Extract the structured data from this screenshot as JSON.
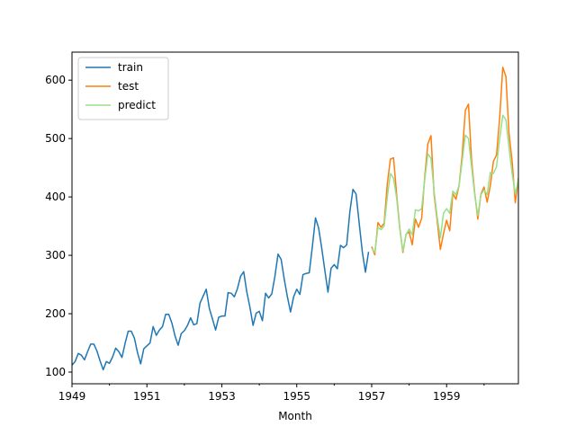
{
  "chart_data": {
    "type": "line",
    "xlabel": "Month",
    "ylabel": "",
    "xlim": [
      "1949-01",
      "1960-12"
    ],
    "ylim": [
      80,
      648
    ],
    "x_ticks": [
      "1949",
      "1951",
      "1953",
      "1955",
      "1957",
      "1959"
    ],
    "y_ticks": [
      100,
      200,
      300,
      400,
      500,
      600
    ],
    "grid": false,
    "legend": "upper-left",
    "series": [
      {
        "name": "train",
        "color": "#1f77b4",
        "x": [
          "1949-01",
          "1949-02",
          "1949-03",
          "1949-04",
          "1949-05",
          "1949-06",
          "1949-07",
          "1949-08",
          "1949-09",
          "1949-10",
          "1949-11",
          "1949-12",
          "1950-01",
          "1950-02",
          "1950-03",
          "1950-04",
          "1950-05",
          "1950-06",
          "1950-07",
          "1950-08",
          "1950-09",
          "1950-10",
          "1950-11",
          "1950-12",
          "1951-01",
          "1951-02",
          "1951-03",
          "1951-04",
          "1951-05",
          "1951-06",
          "1951-07",
          "1951-08",
          "1951-09",
          "1951-10",
          "1951-11",
          "1951-12",
          "1952-01",
          "1952-02",
          "1952-03",
          "1952-04",
          "1952-05",
          "1952-06",
          "1952-07",
          "1952-08",
          "1952-09",
          "1952-10",
          "1952-11",
          "1952-12",
          "1953-01",
          "1953-02",
          "1953-03",
          "1953-04",
          "1953-05",
          "1953-06",
          "1953-07",
          "1953-08",
          "1953-09",
          "1953-10",
          "1953-11",
          "1953-12",
          "1954-01",
          "1954-02",
          "1954-03",
          "1954-04",
          "1954-05",
          "1954-06",
          "1954-07",
          "1954-08",
          "1954-09",
          "1954-10",
          "1954-11",
          "1954-12",
          "1955-01",
          "1955-02",
          "1955-03",
          "1955-04",
          "1955-05",
          "1955-06",
          "1955-07",
          "1955-08",
          "1955-09",
          "1955-10",
          "1955-11",
          "1955-12",
          "1956-01",
          "1956-02",
          "1956-03",
          "1956-04",
          "1956-05",
          "1956-06",
          "1956-07",
          "1956-08",
          "1956-09",
          "1956-10",
          "1956-11",
          "1956-12"
        ],
        "values": [
          112,
          118,
          132,
          129,
          121,
          135,
          148,
          148,
          136,
          119,
          104,
          118,
          115,
          126,
          141,
          135,
          125,
          149,
          170,
          170,
          158,
          133,
          114,
          140,
          145,
          150,
          178,
          163,
          172,
          178,
          199,
          199,
          184,
          162,
          146,
          166,
          171,
          180,
          193,
          181,
          183,
          218,
          230,
          242,
          209,
          191,
          172,
          194,
          196,
          196,
          236,
          235,
          229,
          243,
          264,
          272,
          237,
          211,
          180,
          201,
          204,
          188,
          235,
          227,
          234,
          264,
          302,
          293,
          259,
          229,
          203,
          229,
          242,
          233,
          267,
          269,
          270,
          315,
          364,
          347,
          312,
          274,
          237,
          278,
          284,
          277,
          317,
          313,
          318,
          374,
          413,
          405,
          355,
          306,
          271,
          306
        ]
      },
      {
        "name": "test",
        "color": "#ff7f0e",
        "x": [
          "1957-01",
          "1957-02",
          "1957-03",
          "1957-04",
          "1957-05",
          "1957-06",
          "1957-07",
          "1957-08",
          "1957-09",
          "1957-10",
          "1957-11",
          "1957-12",
          "1958-01",
          "1958-02",
          "1958-03",
          "1958-04",
          "1958-05",
          "1958-06",
          "1958-07",
          "1958-08",
          "1958-09",
          "1958-10",
          "1958-11",
          "1958-12",
          "1959-01",
          "1959-02",
          "1959-03",
          "1959-04",
          "1959-05",
          "1959-06",
          "1959-07",
          "1959-08",
          "1959-09",
          "1959-10",
          "1959-11",
          "1959-12",
          "1960-01",
          "1960-02",
          "1960-03",
          "1960-04",
          "1960-05",
          "1960-06",
          "1960-07",
          "1960-08",
          "1960-09",
          "1960-10",
          "1960-11",
          "1960-12"
        ],
        "values": [
          315,
          301,
          356,
          348,
          355,
          422,
          465,
          467,
          404,
          347,
          305,
          336,
          340,
          318,
          362,
          348,
          363,
          435,
          491,
          505,
          404,
          359,
          310,
          337,
          360,
          342,
          406,
          396,
          420,
          472,
          548,
          559,
          463,
          407,
          362,
          405,
          417,
          391,
          419,
          461,
          472,
          535,
          622,
          606,
          508,
          461,
          390,
          432
        ]
      },
      {
        "name": "predict",
        "color": "#98df8a",
        "x": [
          "1957-01",
          "1957-02",
          "1957-03",
          "1957-04",
          "1957-05",
          "1957-06",
          "1957-07",
          "1957-08",
          "1957-09",
          "1957-10",
          "1957-11",
          "1957-12",
          "1958-01",
          "1958-02",
          "1958-03",
          "1958-04",
          "1958-05",
          "1958-06",
          "1958-07",
          "1958-08",
          "1958-09",
          "1958-10",
          "1958-11",
          "1958-12",
          "1959-01",
          "1959-02",
          "1959-03",
          "1959-04",
          "1959-05",
          "1959-06",
          "1959-07",
          "1959-08",
          "1959-09",
          "1959-10",
          "1959-11",
          "1959-12",
          "1960-01",
          "1960-02",
          "1960-03",
          "1960-04",
          "1960-05",
          "1960-06",
          "1960-07",
          "1960-08",
          "1960-09",
          "1960-10",
          "1960-11",
          "1960-12"
        ],
        "values": [
          312,
          305,
          348,
          344,
          350,
          400,
          440,
          432,
          398,
          345,
          307,
          335,
          345,
          335,
          378,
          376,
          380,
          430,
          474,
          466,
          410,
          365,
          330,
          372,
          380,
          372,
          410,
          404,
          420,
          462,
          506,
          500,
          452,
          404,
          368,
          404,
          412,
          404,
          442,
          440,
          452,
          500,
          540,
          532,
          484,
          440,
          405,
          430
        ]
      }
    ]
  }
}
